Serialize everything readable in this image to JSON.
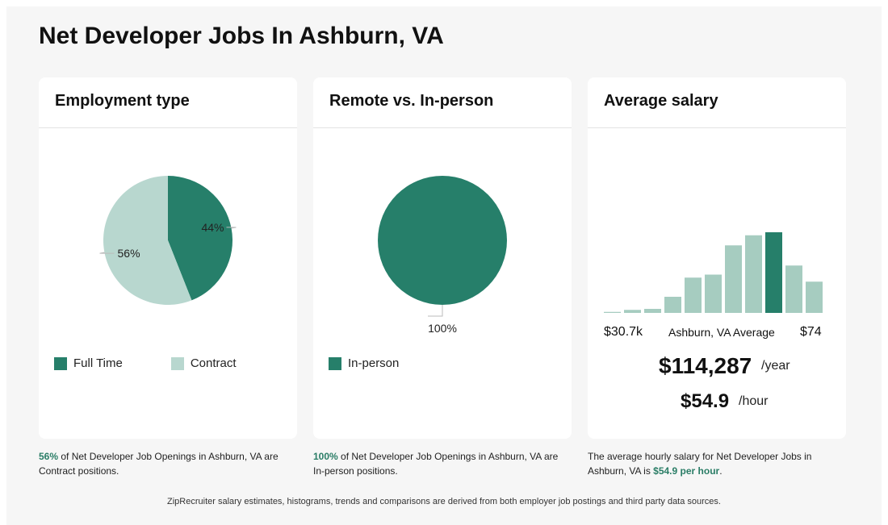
{
  "page": {
    "title": "Net Developer Jobs In Ashburn, VA"
  },
  "colors": {
    "dark_green": "#267f6a",
    "light_green": "#b8d7cf",
    "hist_light": "#a6ccc0",
    "background": "#f6f6f6"
  },
  "cards": {
    "employment": {
      "title": "Employment type",
      "legend": [
        "Full Time",
        "Contract"
      ],
      "caption_pct": "56%",
      "caption_text": " of Net Developer Job Openings in Ashburn, VA are Contract positions."
    },
    "remote": {
      "title": "Remote vs. In-person",
      "legend": [
        "In-person"
      ],
      "caption_pct": "100%",
      "caption_text": " of Net Developer Job Openings in Ashburn, VA are In-person positions."
    },
    "salary": {
      "title": "Average salary",
      "min_label": "$30.7k",
      "avg_label": "Ashburn, VA Average",
      "max_label": "$74",
      "yearly": "$114,287",
      "yearly_unit": "/year",
      "hourly": "$54.9",
      "hourly_unit": "/hour",
      "caption_text": "The average hourly salary for Net Developer Jobs in Ashburn, VA is ",
      "caption_value": "$54.9 per hour",
      "caption_end": "."
    }
  },
  "footer": "ZipRecruiter salary estimates, histograms, trends and comparisons are derived from both employer job postings and third party data sources.",
  "chart_data": [
    {
      "type": "pie",
      "title": "Employment type",
      "labels": [
        "Full Time",
        "Contract"
      ],
      "values": [
        44,
        56
      ],
      "value_labels": [
        "44%",
        "56%"
      ]
    },
    {
      "type": "pie",
      "title": "Remote vs. In-person",
      "labels": [
        "In-person"
      ],
      "values": [
        100
      ],
      "value_labels": [
        "100%"
      ]
    },
    {
      "type": "bar",
      "title": "Average salary",
      "categories": [
        "1",
        "2",
        "3",
        "4",
        "5",
        "6",
        "7",
        "8",
        "9",
        "10",
        "11"
      ],
      "values": [
        1,
        3,
        4,
        16,
        35,
        38,
        67,
        77,
        80,
        47,
        31
      ],
      "highlight_index": 8,
      "xlabels": [
        "$30.7k",
        "Ashburn, VA Average",
        "$74"
      ]
    }
  ]
}
